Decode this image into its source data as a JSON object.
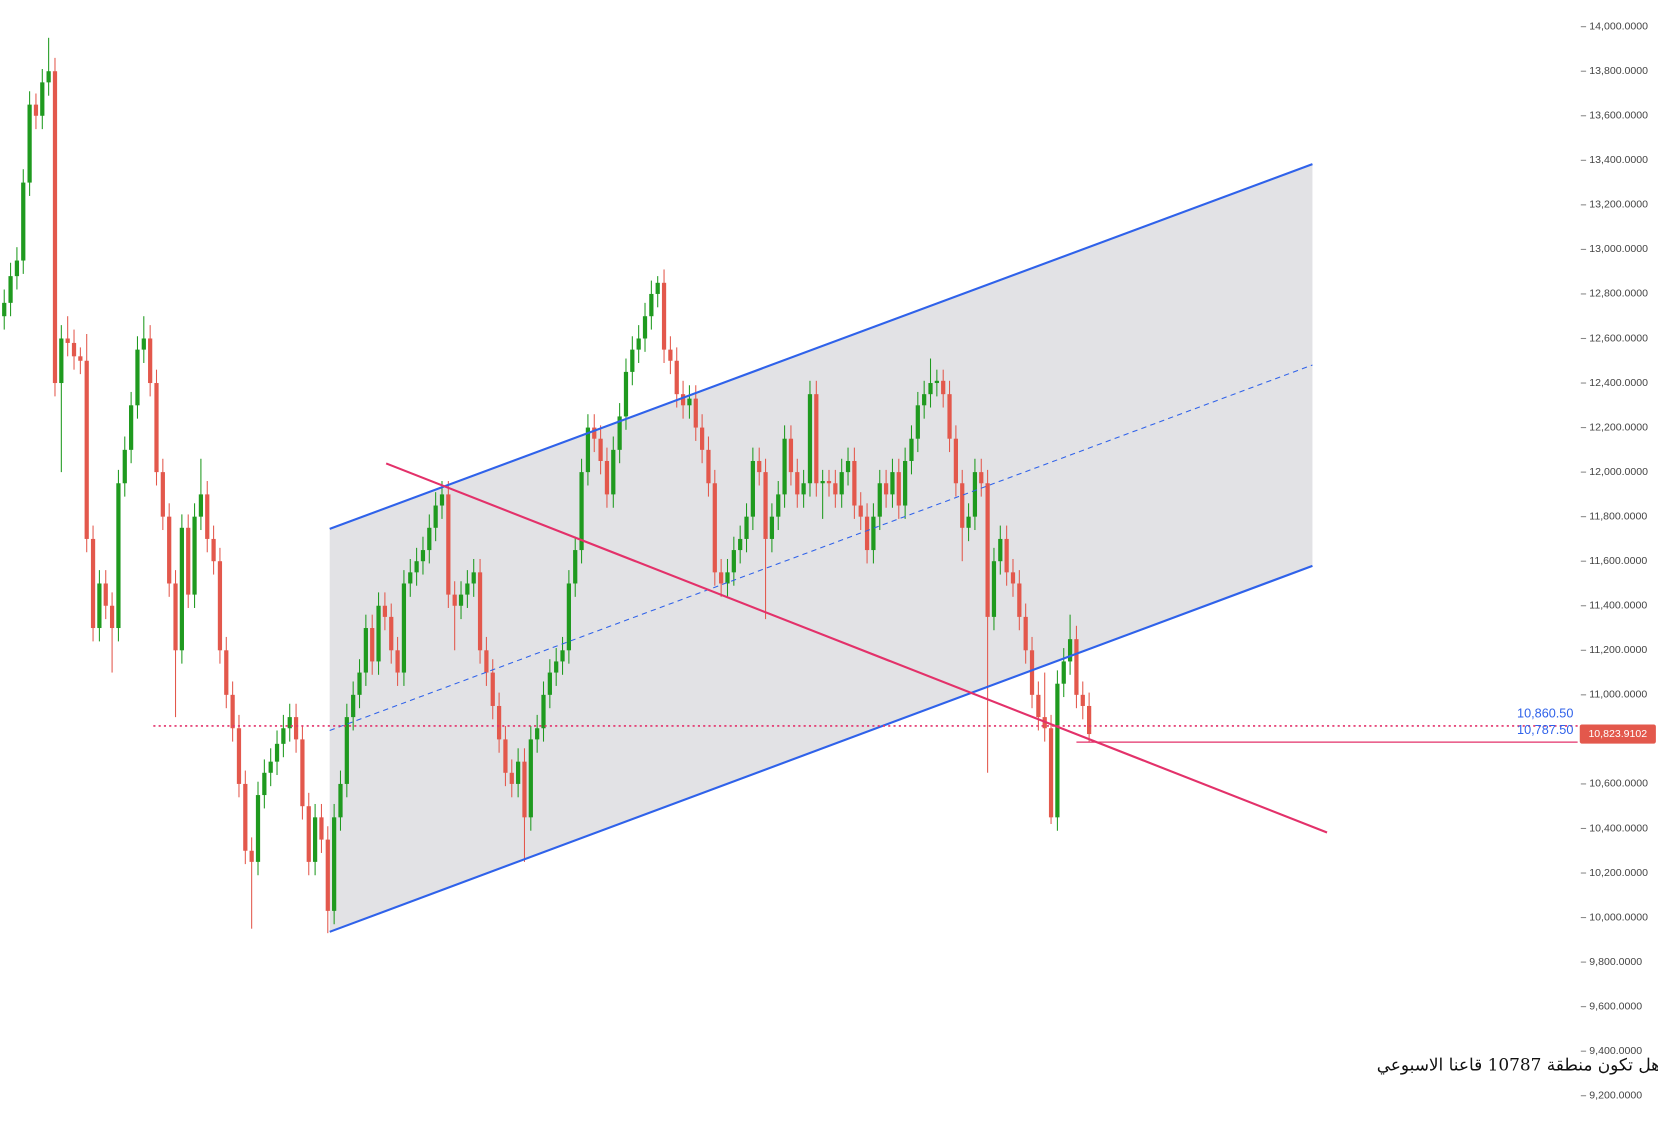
{
  "chart_data": {
    "type": "candlestick",
    "up_color": "#1f9a1f",
    "down_color": "#e3584c",
    "ylim": [
      9020,
      14119
    ],
    "yticks": [
      {
        "value": 14000,
        "label": "14,000.0000"
      },
      {
        "value": 13800,
        "label": "13,800.0000"
      },
      {
        "value": 13600,
        "label": "13,600.0000"
      },
      {
        "value": 13400,
        "label": "13,400.0000"
      },
      {
        "value": 13200,
        "label": "13,200.0000"
      },
      {
        "value": 13000,
        "label": "13,000.0000"
      },
      {
        "value": 12800,
        "label": "12,800.0000"
      },
      {
        "value": 12600,
        "label": "12,600.0000"
      },
      {
        "value": 12400,
        "label": "12,400.0000"
      },
      {
        "value": 12200,
        "label": "12,200.0000"
      },
      {
        "value": 12000,
        "label": "12,000.0000"
      },
      {
        "value": 11800,
        "label": "11,800.0000"
      },
      {
        "value": 11600,
        "label": "11,600.0000"
      },
      {
        "value": 11400,
        "label": "11,400.0000"
      },
      {
        "value": 11200,
        "label": "11,200.0000"
      },
      {
        "value": 11000,
        "label": "11,000.0000"
      },
      {
        "value": 10800,
        "label": "10,800.0000"
      },
      {
        "value": 10600,
        "label": "10,600.0000"
      },
      {
        "value": 10400,
        "label": "10,400.0000"
      },
      {
        "value": 10200,
        "label": "10,200.0000"
      },
      {
        "value": 10000,
        "label": "10,000.0000"
      },
      {
        "value": 9800,
        "label": "9,800.0000"
      },
      {
        "value": 9600,
        "label": "9,600.0000"
      },
      {
        "value": 9400,
        "label": "9,400.0000"
      },
      {
        "value": 9200,
        "label": "9,200.0000"
      }
    ],
    "ohlc": [
      [
        12700,
        12820,
        12640,
        12760
      ],
      [
        12760,
        12940,
        12700,
        12880
      ],
      [
        12880,
        13010,
        12820,
        12950
      ],
      [
        12950,
        13360,
        12890,
        13300
      ],
      [
        13300,
        13710,
        13240,
        13650
      ],
      [
        13650,
        13700,
        13540,
        13600
      ],
      [
        13600,
        13810,
        13540,
        13750
      ],
      [
        13750,
        13950,
        13690,
        13800
      ],
      [
        13800,
        13860,
        12340,
        12400
      ],
      [
        12400,
        12660,
        12000,
        12600
      ],
      [
        12600,
        12700,
        12520,
        12580
      ],
      [
        12580,
        12640,
        12460,
        12520
      ],
      [
        12520,
        12560,
        12440,
        12500
      ],
      [
        12500,
        12620,
        11640,
        11700
      ],
      [
        11700,
        11760,
        11240,
        11300
      ],
      [
        11300,
        11560,
        11240,
        11500
      ],
      [
        11500,
        11560,
        11340,
        11400
      ],
      [
        11400,
        11460,
        11100,
        11300
      ],
      [
        11300,
        12010,
        11240,
        11950
      ],
      [
        11950,
        12160,
        11890,
        12100
      ],
      [
        12100,
        12360,
        12040,
        12300
      ],
      [
        12300,
        12610,
        12240,
        12550
      ],
      [
        12550,
        12700,
        12490,
        12600
      ],
      [
        12600,
        12660,
        12340,
        12400
      ],
      [
        12400,
        12460,
        11940,
        12000
      ],
      [
        12000,
        12060,
        11740,
        11800
      ],
      [
        11800,
        11860,
        11440,
        11500
      ],
      [
        11500,
        11560,
        10900,
        11200
      ],
      [
        11200,
        11810,
        11140,
        11750
      ],
      [
        11750,
        11810,
        11390,
        11450
      ],
      [
        11450,
        11860,
        11390,
        11800
      ],
      [
        11800,
        12060,
        11740,
        11900
      ],
      [
        11900,
        11960,
        11640,
        11700
      ],
      [
        11700,
        11760,
        11540,
        11600
      ],
      [
        11600,
        11660,
        11140,
        11200
      ],
      [
        11200,
        11260,
        10940,
        11000
      ],
      [
        11000,
        11060,
        10790,
        10850
      ],
      [
        10850,
        10910,
        10540,
        10600
      ],
      [
        10600,
        10660,
        10240,
        10300
      ],
      [
        10300,
        10360,
        9950,
        10250
      ],
      [
        10250,
        10610,
        10190,
        10550
      ],
      [
        10550,
        10710,
        10490,
        10650
      ],
      [
        10650,
        10760,
        10590,
        10700
      ],
      [
        10700,
        10840,
        10640,
        10780
      ],
      [
        10780,
        10910,
        10720,
        10850
      ],
      [
        10850,
        10960,
        10790,
        10900
      ],
      [
        10900,
        10960,
        10740,
        10800
      ],
      [
        10800,
        10860,
        10440,
        10500
      ],
      [
        10500,
        10560,
        10190,
        10250
      ],
      [
        10250,
        10510,
        10190,
        10450
      ],
      [
        10450,
        10510,
        10290,
        10350
      ],
      [
        10350,
        10410,
        9930,
        10030
      ],
      [
        10030,
        10510,
        9970,
        10450
      ],
      [
        10450,
        10660,
        10390,
        10600
      ],
      [
        10600,
        10960,
        10540,
        10900
      ],
      [
        10900,
        11060,
        10840,
        11000
      ],
      [
        11000,
        11160,
        10940,
        11100
      ],
      [
        11100,
        11360,
        11040,
        11300
      ],
      [
        11300,
        11360,
        11090,
        11150
      ],
      [
        11150,
        11460,
        11090,
        11400
      ],
      [
        11400,
        11460,
        11290,
        11350
      ],
      [
        11350,
        11410,
        11140,
        11200
      ],
      [
        11200,
        11260,
        11040,
        11100
      ],
      [
        11100,
        11560,
        11040,
        11500
      ],
      [
        11500,
        11610,
        11440,
        11550
      ],
      [
        11550,
        11660,
        11490,
        11600
      ],
      [
        11600,
        11710,
        11540,
        11650
      ],
      [
        11650,
        11810,
        11590,
        11750
      ],
      [
        11750,
        11910,
        11690,
        11850
      ],
      [
        11850,
        11960,
        11790,
        11900
      ],
      [
        11900,
        11960,
        11390,
        11450
      ],
      [
        11450,
        11510,
        11200,
        11400
      ],
      [
        11400,
        11510,
        11340,
        11450
      ],
      [
        11450,
        11560,
        11390,
        11500
      ],
      [
        11500,
        11610,
        11440,
        11550
      ],
      [
        11550,
        11610,
        11140,
        11200
      ],
      [
        11200,
        11260,
        11040,
        11100
      ],
      [
        11100,
        11160,
        10890,
        10950
      ],
      [
        10950,
        11010,
        10740,
        10800
      ],
      [
        10800,
        10860,
        10590,
        10650
      ],
      [
        10650,
        10710,
        10540,
        10600
      ],
      [
        10600,
        10760,
        10540,
        10700
      ],
      [
        10700,
        10760,
        10250,
        10450
      ],
      [
        10450,
        10860,
        10390,
        10800
      ],
      [
        10800,
        10910,
        10740,
        10850
      ],
      [
        10850,
        11060,
        10790,
        11000
      ],
      [
        11000,
        11160,
        10940,
        11100
      ],
      [
        11100,
        11210,
        11040,
        11150
      ],
      [
        11150,
        11260,
        11090,
        11200
      ],
      [
        11200,
        11560,
        11140,
        11500
      ],
      [
        11500,
        11710,
        11440,
        11650
      ],
      [
        11650,
        12060,
        11590,
        12000
      ],
      [
        12000,
        12260,
        11940,
        12200
      ],
      [
        12200,
        12260,
        12090,
        12150
      ],
      [
        12150,
        12210,
        11990,
        12050
      ],
      [
        12050,
        12110,
        11840,
        11900
      ],
      [
        11900,
        12160,
        11840,
        12100
      ],
      [
        12100,
        12310,
        12040,
        12250
      ],
      [
        12250,
        12510,
        12190,
        12450
      ],
      [
        12450,
        12610,
        12390,
        12550
      ],
      [
        12550,
        12660,
        12490,
        12600
      ],
      [
        12600,
        12760,
        12540,
        12700
      ],
      [
        12700,
        12860,
        12640,
        12800
      ],
      [
        12800,
        12880,
        12740,
        12850
      ],
      [
        12850,
        12910,
        12490,
        12550
      ],
      [
        12550,
        12610,
        12440,
        12500
      ],
      [
        12500,
        12560,
        12290,
        12350
      ],
      [
        12350,
        12410,
        12240,
        12300
      ],
      [
        12300,
        12390,
        12240,
        12330
      ],
      [
        12330,
        12390,
        12140,
        12200
      ],
      [
        12200,
        12260,
        12040,
        12100
      ],
      [
        12100,
        12160,
        11890,
        11950
      ],
      [
        11950,
        12010,
        11490,
        11550
      ],
      [
        11550,
        11610,
        11440,
        11500
      ],
      [
        11500,
        11610,
        11440,
        11550
      ],
      [
        11550,
        11710,
        11490,
        11650
      ],
      [
        11650,
        11760,
        11590,
        11700
      ],
      [
        11700,
        11860,
        11640,
        11800
      ],
      [
        11800,
        12110,
        11740,
        12050
      ],
      [
        12050,
        12110,
        11940,
        12000
      ],
      [
        12000,
        12060,
        11340,
        11700
      ],
      [
        11700,
        11860,
        11640,
        11800
      ],
      [
        11800,
        11960,
        11740,
        11900
      ],
      [
        11900,
        12210,
        11840,
        12150
      ],
      [
        12150,
        12210,
        11940,
        12000
      ],
      [
        12000,
        12060,
        11840,
        11900
      ],
      [
        11900,
        12010,
        11840,
        11950
      ],
      [
        11950,
        12410,
        11890,
        12350
      ],
      [
        12350,
        12410,
        11890,
        11950
      ],
      [
        11950,
        12010,
        11790,
        11960
      ],
      [
        11960,
        12010,
        11890,
        11950
      ],
      [
        11950,
        12010,
        11840,
        11900
      ],
      [
        11900,
        12060,
        11840,
        12000
      ],
      [
        12000,
        12110,
        11940,
        12050
      ],
      [
        12050,
        12110,
        11790,
        11850
      ],
      [
        11850,
        11910,
        11740,
        11800
      ],
      [
        11800,
        11860,
        11590,
        11650
      ],
      [
        11650,
        11860,
        11590,
        11800
      ],
      [
        11800,
        12010,
        11740,
        11950
      ],
      [
        11950,
        12010,
        11840,
        11900
      ],
      [
        11900,
        12060,
        11840,
        12000
      ],
      [
        12000,
        12060,
        11790,
        11850
      ],
      [
        11850,
        12110,
        11790,
        12050
      ],
      [
        12050,
        12210,
        11990,
        12150
      ],
      [
        12150,
        12360,
        12090,
        12300
      ],
      [
        12300,
        12410,
        12240,
        12350
      ],
      [
        12350,
        12510,
        12290,
        12400
      ],
      [
        12400,
        12460,
        12340,
        12410
      ],
      [
        12410,
        12460,
        12290,
        12350
      ],
      [
        12350,
        12410,
        12090,
        12150
      ],
      [
        12150,
        12210,
        11890,
        11950
      ],
      [
        11950,
        12010,
        11600,
        11750
      ],
      [
        11750,
        11860,
        11690,
        11800
      ],
      [
        11800,
        12060,
        11740,
        12000
      ],
      [
        12000,
        12060,
        11890,
        11950
      ],
      [
        11950,
        12010,
        10650,
        11350
      ],
      [
        11350,
        11660,
        11290,
        11600
      ],
      [
        11600,
        11760,
        11540,
        11700
      ],
      [
        11700,
        11760,
        11490,
        11550
      ],
      [
        11550,
        11610,
        11440,
        11500
      ],
      [
        11500,
        11560,
        11290,
        11350
      ],
      [
        11350,
        11410,
        11140,
        11200
      ],
      [
        11200,
        11260,
        10940,
        11000
      ],
      [
        11000,
        11060,
        10840,
        10900
      ],
      [
        10900,
        11100,
        10790,
        10850
      ],
      [
        10850,
        10910,
        10420,
        10450
      ],
      [
        10450,
        11110,
        10390,
        11050
      ],
      [
        11050,
        11210,
        10990,
        11150
      ],
      [
        11150,
        11360,
        11090,
        11250
      ],
      [
        11250,
        11310,
        10940,
        11000
      ],
      [
        11000,
        11060,
        10890,
        10950
      ],
      [
        10950,
        11010,
        10787,
        10823.9102
      ]
    ],
    "channel": {
      "x": [
        51.3,
        206.2
      ],
      "lower": [
        9936,
        11579
      ],
      "upper": [
        11745,
        13383
      ],
      "median": [
        10840,
        12481
      ],
      "color": "#2f62ea",
      "fill": "#e2e2e5"
    },
    "trend_line": {
      "x": [
        60.2,
        208.5
      ],
      "y": [
        12039,
        10382
      ],
      "color": "#e3316a"
    },
    "hlines": [
      {
        "value": 10860.5,
        "label": "10,860.50",
        "x_start": 23.5,
        "style": "dotted",
        "color": "#e3316a",
        "label_color": "#2f62ea"
      },
      {
        "value": 10787.5,
        "label": "10,787.50",
        "x_start": 169,
        "style": "solid",
        "color": "#e3316a",
        "label_color": "#2f62ea"
      }
    ],
    "last_price": {
      "value": 10823.9102,
      "label": "10,823.9102",
      "color": "#e3584c"
    },
    "annotation": "هل تكون منطقة 10787 قاعنا الاسبوعي"
  }
}
